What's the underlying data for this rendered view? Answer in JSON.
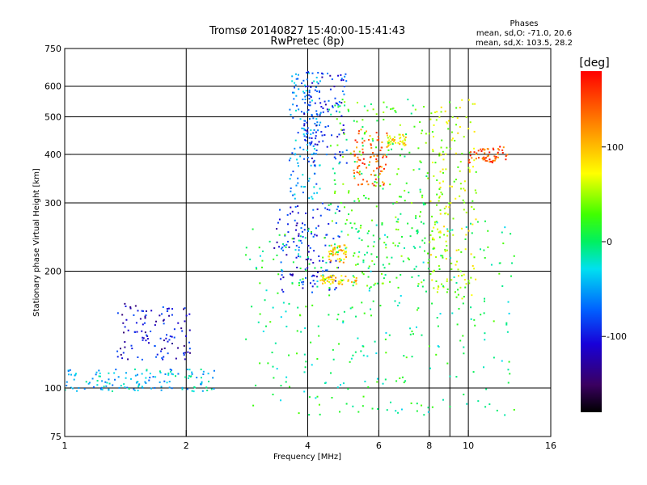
{
  "chart_data": {
    "type": "scatter",
    "title": "Tromsø 20140827 15:40:00-15:41:43",
    "subtitle": "RwPretec (8p)",
    "xlabel": "Frequency [MHz]",
    "ylabel": "Stationary phase Virtual Height [km]",
    "x_scale": "log",
    "y_scale": "log",
    "xlim": [
      1,
      16
    ],
    "ylim": [
      75,
      750
    ],
    "x_ticks": [
      1,
      2,
      4,
      6,
      8,
      10,
      16
    ],
    "x_tick_labels": [
      "1",
      "2",
      "4",
      "6",
      "8",
      "10",
      "16"
    ],
    "x_grid": [
      2,
      4,
      6,
      8,
      9,
      10
    ],
    "y_ticks": [
      75,
      100,
      200,
      300,
      400,
      500,
      600,
      750
    ],
    "y_tick_labels": [
      "75",
      "100",
      "200",
      "300",
      "400",
      "500",
      "600",
      "750"
    ],
    "y_grid": [
      100,
      200,
      300,
      400,
      500,
      600
    ],
    "grid": true,
    "stats": {
      "header": "Phases",
      "line1": "mean, sd,O: -71.0, 20.6",
      "line2": "mean, sd,X: 103.5, 28.2"
    },
    "colorbar": {
      "label": "[deg]",
      "range": [
        -180,
        180
      ],
      "ticks": [
        100,
        0,
        -100
      ],
      "tick_labels": [
        "100",
        "0",
        "-100"
      ],
      "colormap": "rainbow (black-purple-blue-cyan-green-yellow-red)"
    },
    "clusters": [
      {
        "desc": "E-layer trace",
        "x": [
          1.0,
          2.35
        ],
        "y": [
          98,
          112
        ],
        "phase": -40
      },
      {
        "desc": "sporadic low scatter",
        "x": [
          1.35,
          2.05
        ],
        "y": [
          118,
          165
        ],
        "phase": -110
      },
      {
        "desc": "F-layer low-frequency dense trace",
        "x": [
          3.3,
          4.8
        ],
        "y": [
          175,
          300
        ],
        "phase": -100
      },
      {
        "desc": "F-layer cusp rising",
        "x": [
          3.6,
          4.3
        ],
        "y": [
          300,
          650
        ],
        "phase": -55
      },
      {
        "desc": "upper F trace blue",
        "x": [
          3.9,
          5.0
        ],
        "y": [
          380,
          660
        ],
        "phase": -95
      },
      {
        "desc": "orange cluster near 5.5 MHz",
        "x": [
          5.2,
          6.3
        ],
        "y": [
          330,
          470
        ],
        "phase": 140
      },
      {
        "desc": "yellow cluster near 4.8 MHz",
        "x": [
          4.5,
          5.0
        ],
        "y": [
          210,
          235
        ],
        "phase": 100
      },
      {
        "desc": "yellow cluster near 6.5 MHz",
        "x": [
          6.3,
          7.0
        ],
        "y": [
          420,
          450
        ],
        "phase": 85
      },
      {
        "desc": "yellow band near 190 km",
        "x": [
          4.3,
          5.3
        ],
        "y": [
          185,
          195
        ],
        "phase": 95
      },
      {
        "desc": "mixed scatter mid frequencies",
        "x": [
          4.5,
          8.0
        ],
        "y": [
          180,
          560
        ],
        "phase": 20
      },
      {
        "desc": "high-frequency scatter",
        "x": [
          8.0,
          10.5
        ],
        "y": [
          170,
          560
        ],
        "phase": 60
      },
      {
        "desc": "red cluster near 11 MHz",
        "x": [
          10.0,
          12.5
        ],
        "y": [
          380,
          420
        ],
        "phase": 150
      },
      {
        "desc": "outlier points",
        "x": [
          2.8,
          13.0
        ],
        "y": [
          85,
          270
        ],
        "phase": 0
      }
    ]
  }
}
